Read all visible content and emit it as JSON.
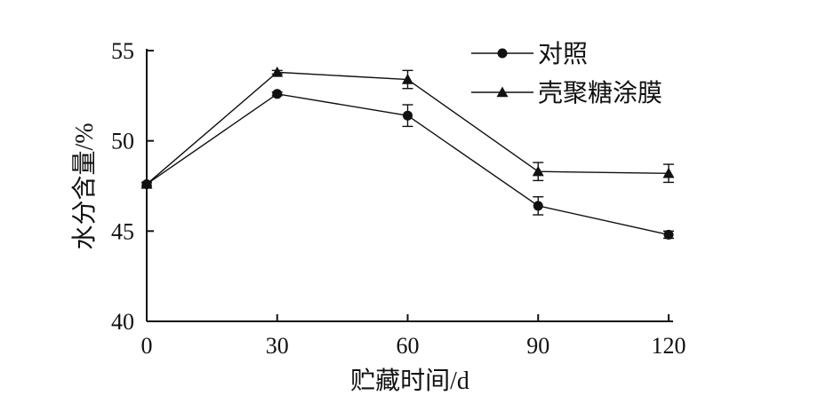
{
  "chart_data": {
    "type": "line",
    "xlabel": "贮藏时间/d",
    "ylabel": "水分含量/%",
    "x": [
      0,
      30,
      60,
      90,
      120
    ],
    "xlim": [
      0,
      120
    ],
    "ylim": [
      40,
      55
    ],
    "xticks": [
      "0",
      "30",
      "60",
      "90",
      "120"
    ],
    "yticks": [
      "40",
      "45",
      "50",
      "55"
    ],
    "grid": false,
    "legend_position": "top-right",
    "series": [
      {
        "name": "对照",
        "marker": "circle",
        "values": [
          47.6,
          52.6,
          51.4,
          46.4,
          44.8
        ],
        "errors": [
          0.1,
          0.1,
          0.6,
          0.5,
          0.2
        ]
      },
      {
        "name": "壳聚糖涂膜",
        "marker": "triangle",
        "values": [
          47.6,
          53.8,
          53.4,
          48.3,
          48.2
        ],
        "errors": [
          0.1,
          0.1,
          0.5,
          0.5,
          0.5
        ]
      }
    ]
  }
}
